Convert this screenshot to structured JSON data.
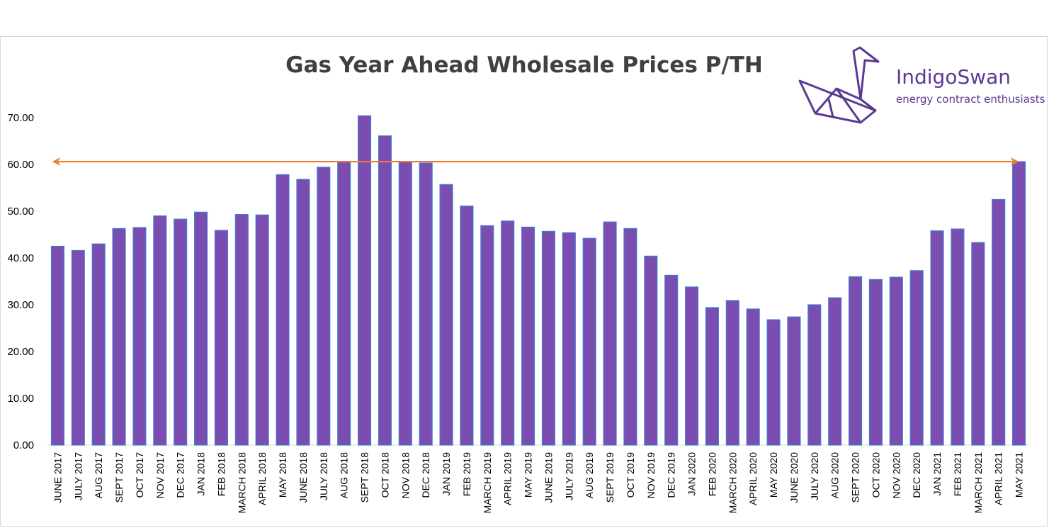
{
  "chart_data": {
    "type": "bar",
    "title": "Gas Year Ahead Wholesale Prices P/TH",
    "xlabel": "",
    "ylabel": "",
    "ylim": [
      0,
      70
    ],
    "ytick_values": [
      0,
      10,
      20,
      30,
      40,
      50,
      60,
      70
    ],
    "ytick_labels": [
      "0.00",
      "10.00",
      "20.00",
      "30.00",
      "40.00",
      "50.00",
      "60.00",
      "70.00"
    ],
    "categories": [
      "JUNE 2017",
      "JULY 2017",
      "AUG 2017",
      "SEPT 2017",
      "OCT 2017",
      "NOV 2017",
      "DEC 2017",
      "JAN 2018",
      "FEB 2018",
      "MARCH 2018",
      "APRIL 2018",
      "MAY 2018",
      "JUNE 2018",
      "JULY 2018",
      "AUG 2018",
      "SEPT 2018",
      "OCT 2018",
      "NOV 2018",
      "DEC 2018",
      "JAN 2019",
      "FEB 2019",
      "MARCH 2019",
      "APRIL 2019",
      "MAY 2019",
      "JUNE 2019",
      "JULY 2019",
      "AUG 2019",
      "SEPT 2019",
      "OCT 2019",
      "NOV 2019",
      "DEC 2019",
      "JAN 2020",
      "FEB 2020",
      "MARCH 2020",
      "APRIL 2020",
      "MAY 2020",
      "JUNE 2020",
      "JULY 2020",
      "AUG 2020",
      "SEPT 2020",
      "OCT 2020",
      "NOV 2020",
      "DEC 2020",
      "JAN 2021",
      "FEB 2021",
      "MARCH 2021",
      "APRIL 2021",
      "MAY 2021"
    ],
    "values": [
      42.5,
      41.6,
      43.0,
      46.3,
      46.5,
      49.0,
      48.3,
      49.8,
      45.9,
      49.3,
      49.2,
      57.8,
      56.8,
      59.4,
      60.6,
      70.4,
      66.1,
      60.6,
      60.3,
      55.7,
      51.1,
      46.9,
      47.9,
      46.6,
      45.7,
      45.4,
      44.2,
      47.7,
      46.3,
      40.4,
      36.3,
      33.8,
      29.4,
      30.9,
      29.1,
      26.8,
      27.4,
      30.0,
      31.5,
      36.0,
      35.4,
      35.9,
      37.3,
      45.8,
      46.2,
      43.3,
      52.5,
      60.6
    ],
    "colors": {
      "bar_fill": "#7b4db0",
      "bar_stroke": "#3d7fcf",
      "arrow": "#ed7d31"
    },
    "annotations": [
      {
        "type": "double-arrow",
        "y": 60.6,
        "from": "JUNE 2017",
        "to": "MAY 2021"
      }
    ]
  },
  "brand": {
    "name": "IndigoSwan",
    "tagline": "energy contract enthusiasts",
    "icon": "origami-swan-icon",
    "color": "#5b3a94"
  }
}
